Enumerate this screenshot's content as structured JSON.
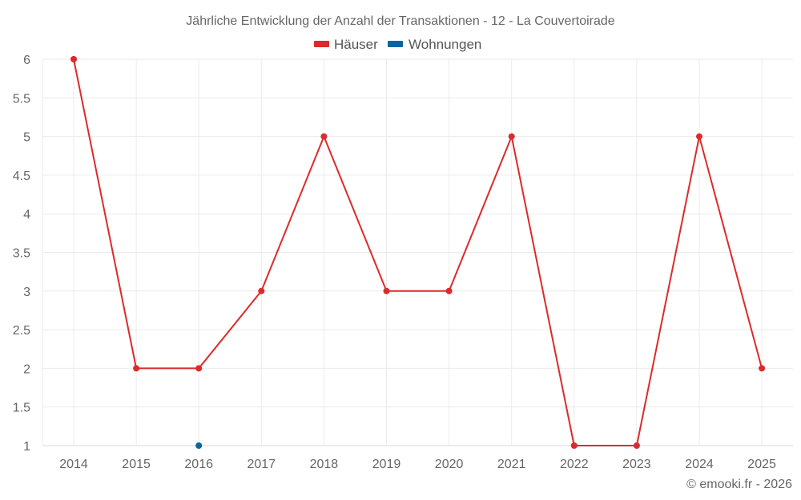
{
  "chart_data": {
    "type": "line",
    "title": "Jährliche Entwicklung der Anzahl der Transaktionen - 12 - La Couvertoirade",
    "xlabel": "",
    "ylabel": "",
    "categories": [
      "2014",
      "2015",
      "2016",
      "2017",
      "2018",
      "2019",
      "2020",
      "2021",
      "2022",
      "2023",
      "2024",
      "2025"
    ],
    "series": [
      {
        "name": "Häuser",
        "color": "#dd2a2a",
        "values": [
          6,
          2,
          2,
          3,
          5,
          3,
          3,
          5,
          1,
          1,
          5,
          2
        ]
      },
      {
        "name": "Wohnungen",
        "color": "#0a64a0",
        "values": [
          null,
          null,
          1,
          null,
          null,
          null,
          null,
          null,
          null,
          null,
          null,
          null
        ]
      }
    ],
    "ylim": [
      1,
      6
    ],
    "yticks": [
      "1",
      "1.5",
      "2",
      "2.5",
      "3",
      "3.5",
      "4",
      "4.5",
      "5",
      "5.5",
      "6"
    ],
    "grid": true,
    "legend_position": "top-center"
  },
  "legend": {
    "items": [
      {
        "label": "Häuser",
        "color": "#dd2a2a"
      },
      {
        "label": "Wohnungen",
        "color": "#0a64a0"
      }
    ]
  },
  "footer": {
    "credit": "© emooki.fr - 2026"
  }
}
